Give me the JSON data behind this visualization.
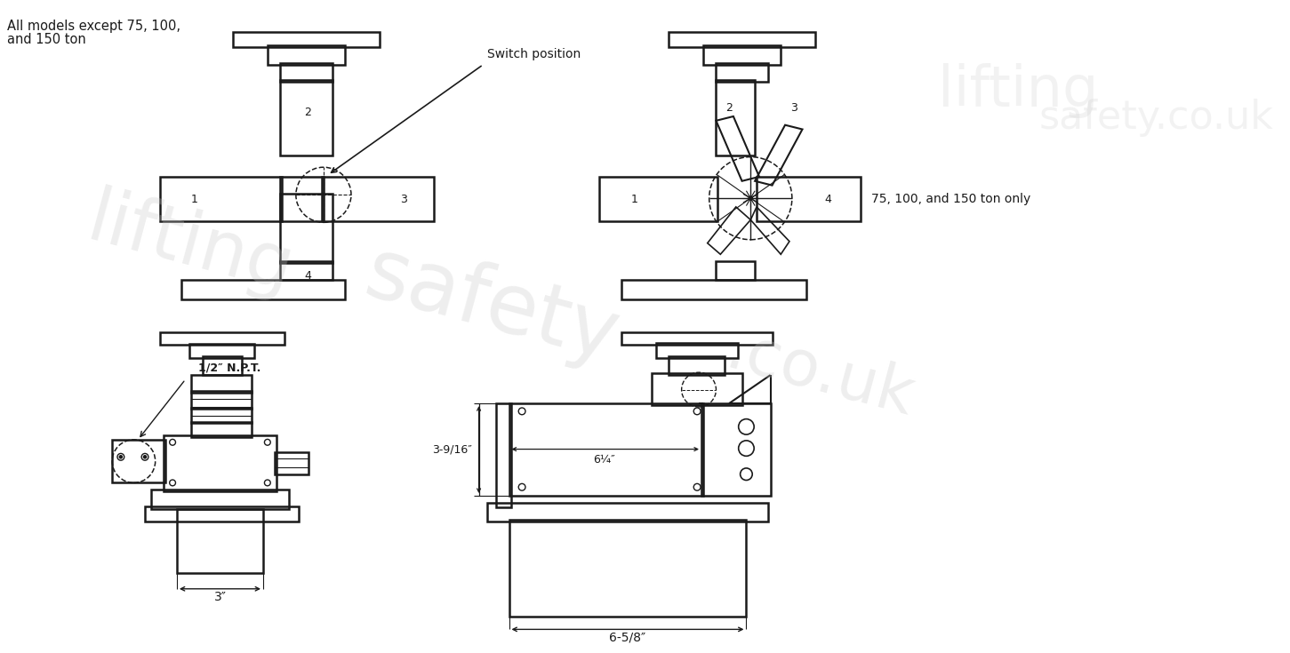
{
  "bg_color": "#ffffff",
  "line_color": "#1a1a1a",
  "text_labels_top_left": [
    "All models except 75, 100,",
    "and 150 ton"
  ],
  "text_labels_top_right": "75, 100, and 150 ton only",
  "switch_position_label": "Switch position",
  "dim_3in": "3″",
  "dim_npt": "1/2″ N.P.T.",
  "dim_3_9_16": "3-9/16″",
  "dim_6_1_4": "6¼″",
  "dim_6_5_8": "6-5/8″"
}
